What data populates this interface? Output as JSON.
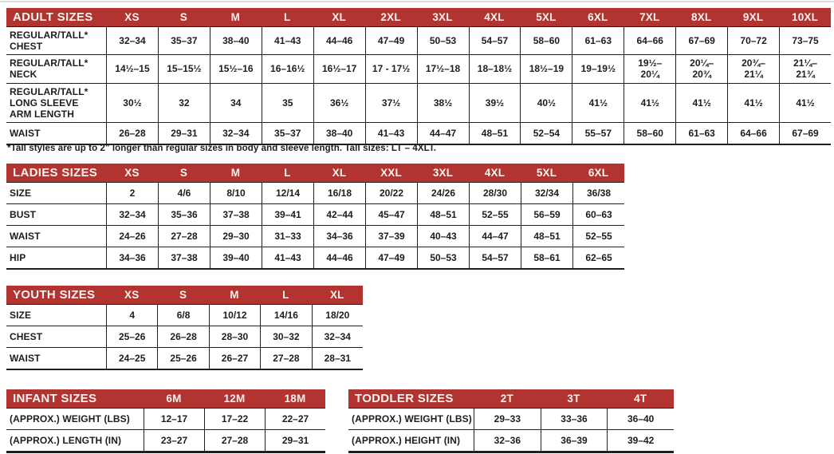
{
  "theme": {
    "header_bg": "#B23431",
    "header_text": "#F8F3EF",
    "border": "#1F1F1F",
    "text": "#1D1D1D"
  },
  "footnote": "*Tall styles are up to 2\" longer than regular sizes in body and sleeve length. Tall sizes: LT – 4XLT.",
  "tables": {
    "adult": {
      "title": "ADULT SIZES",
      "columns": [
        "XS",
        "S",
        "M",
        "L",
        "XL",
        "2XL",
        "3XL",
        "4XL",
        "5XL",
        "6XL",
        "7XL",
        "8XL",
        "9XL",
        "10XL"
      ],
      "rows": [
        {
          "label": "REGULAR/TALL*\nCHEST",
          "values": [
            "32–34",
            "35–37",
            "38–40",
            "41–43",
            "44–46",
            "47–49",
            "50–53",
            "54–57",
            "58–60",
            "61–63",
            "64–66",
            "67–69",
            "70–72",
            "73–75"
          ]
        },
        {
          "label": "REGULAR/TALL*\nNECK",
          "values": [
            "14½–15",
            "15–15½",
            "15½–16",
            "16–16½",
            "16½–17",
            "17 - 17½",
            "17½–18",
            "18–18½",
            "18½–19",
            "19–19½",
            "19½–\n20¼",
            "20¼–\n20¾",
            "20¾–\n21¼",
            "21¼–\n21¾"
          ]
        },
        {
          "label": "REGULAR/TALL*\nLONG SLEEVE\nARM LENGTH",
          "values": [
            "30½",
            "32",
            "34",
            "35",
            "36½",
            "37½",
            "38½",
            "39½",
            "40½",
            "41½",
            "41½",
            "41½",
            "41½",
            "41½"
          ]
        },
        {
          "label": "WAIST",
          "values": [
            "26–28",
            "29–31",
            "32–34",
            "35–37",
            "38–40",
            "41–43",
            "44–47",
            "48–51",
            "52–54",
            "55–57",
            "58–60",
            "61–63",
            "64–66",
            "67–69"
          ]
        }
      ]
    },
    "ladies": {
      "title": "LADIES SIZES",
      "columns": [
        "XS",
        "S",
        "M",
        "L",
        "XL",
        "XXL",
        "3XL",
        "4XL",
        "5XL",
        "6XL"
      ],
      "rows": [
        {
          "label": "SIZE",
          "values": [
            "2",
            "4/6",
            "8/10",
            "12/14",
            "16/18",
            "20/22",
            "24/26",
            "28/30",
            "32/34",
            "36/38"
          ]
        },
        {
          "label": "BUST",
          "values": [
            "32–34",
            "35–36",
            "37–38",
            "39–41",
            "42–44",
            "45–47",
            "48–51",
            "52–55",
            "56–59",
            "60–63"
          ]
        },
        {
          "label": "WAIST",
          "values": [
            "24–26",
            "27–28",
            "29–30",
            "31–33",
            "34–36",
            "37–39",
            "40–43",
            "44–47",
            "48–51",
            "52–55"
          ]
        },
        {
          "label": "HIP",
          "values": [
            "34–36",
            "37–38",
            "39–40",
            "41–43",
            "44–46",
            "47–49",
            "50–53",
            "54–57",
            "58–61",
            "62–65"
          ]
        }
      ]
    },
    "youth": {
      "title": "YOUTH SIZES",
      "columns": [
        "XS",
        "S",
        "M",
        "L",
        "XL"
      ],
      "rows": [
        {
          "label": "SIZE",
          "values": [
            "4",
            "6/8",
            "10/12",
            "14/16",
            "18/20"
          ]
        },
        {
          "label": "CHEST",
          "values": [
            "25–26",
            "26–28",
            "28–30",
            "30–32",
            "32–34"
          ]
        },
        {
          "label": "WAIST",
          "values": [
            "24–25",
            "25–26",
            "26–27",
            "27–28",
            "28–31"
          ]
        }
      ]
    },
    "infant": {
      "title": "INFANT SIZES",
      "columns": [
        "6M",
        "12M",
        "18M"
      ],
      "rows": [
        {
          "label": "(APPROX.) WEIGHT (LBS)",
          "values": [
            "12–17",
            "17–22",
            "22–27"
          ]
        },
        {
          "label": "(APPROX.) LENGTH (IN)",
          "values": [
            "23–27",
            "27–28",
            "29–31"
          ]
        }
      ]
    },
    "toddler": {
      "title": "TODDLER SIZES",
      "columns": [
        "2T",
        "3T",
        "4T"
      ],
      "rows": [
        {
          "label": "(APPROX.) WEIGHT (LBS)",
          "values": [
            "29–33",
            "33–36",
            "36–40"
          ]
        },
        {
          "label": "(APPROX.) HEIGHT (IN)",
          "values": [
            "32–36",
            "36–39",
            "39–42"
          ]
        }
      ]
    }
  }
}
